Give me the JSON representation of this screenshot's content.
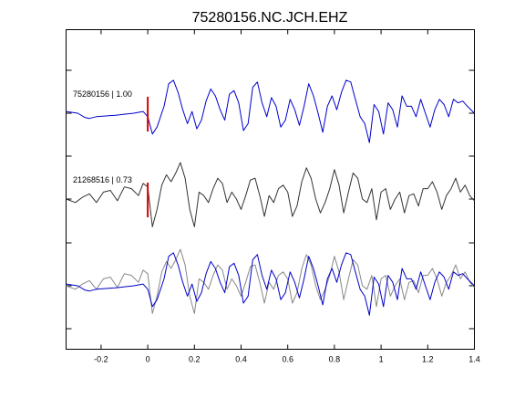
{
  "chart_data": {
    "type": "line",
    "title": "75280156.NC.JCH.EHZ",
    "xlabel": "",
    "ylabel": "",
    "xlim": [
      -0.35,
      1.4
    ],
    "x_ticks": [
      "-0.2",
      "0",
      "0.2",
      "0.4",
      "0.6",
      "0.8",
      "1",
      "1.2",
      "1.4"
    ],
    "x_tick_values": [
      -0.2,
      0,
      0.2,
      0.4,
      0.6,
      0.8,
      1.0,
      1.2,
      1.4
    ],
    "grid": false,
    "pick_time": 0,
    "pick_color": "#dd0000",
    "traces": [
      {
        "label": "75280156 | 1.00",
        "color": "#0000cc",
        "x": [
          -0.35,
          -0.3,
          -0.27,
          -0.25,
          -0.22,
          -0.18,
          -0.14,
          -0.1,
          -0.06,
          -0.02,
          0.0,
          0.02,
          0.04,
          0.07,
          0.09,
          0.11,
          0.13,
          0.15,
          0.17,
          0.19,
          0.21,
          0.23,
          0.25,
          0.27,
          0.29,
          0.31,
          0.33,
          0.35,
          0.37,
          0.39,
          0.41,
          0.43,
          0.45,
          0.47,
          0.49,
          0.51,
          0.53,
          0.55,
          0.57,
          0.59,
          0.61,
          0.63,
          0.65,
          0.67,
          0.69,
          0.71,
          0.73,
          0.75,
          0.77,
          0.79,
          0.81,
          0.83,
          0.85,
          0.87,
          0.89,
          0.91,
          0.93,
          0.95,
          0.97,
          0.99,
          1.01,
          1.03,
          1.05,
          1.07,
          1.09,
          1.11,
          1.13,
          1.15,
          1.17,
          1.19,
          1.21,
          1.23,
          1.25,
          1.27,
          1.29,
          1.31,
          1.33,
          1.35,
          1.37,
          1.4
        ],
        "y": [
          0.05,
          0.0,
          -0.12,
          -0.15,
          -0.1,
          -0.08,
          -0.06,
          -0.03,
          0.0,
          0.05,
          -0.1,
          -0.6,
          -0.4,
          0.2,
          0.85,
          0.95,
          0.6,
          0.1,
          -0.3,
          0.05,
          -0.45,
          -0.2,
          0.35,
          0.7,
          0.5,
          0.1,
          -0.2,
          0.55,
          0.65,
          0.3,
          -0.5,
          -0.3,
          0.75,
          0.9,
          0.3,
          -0.1,
          0.45,
          0.2,
          -0.4,
          -0.2,
          0.4,
          0.1,
          -0.35,
          0.2,
          0.85,
          0.5,
          0.0,
          -0.55,
          0.2,
          0.5,
          0.1,
          0.6,
          0.95,
          0.9,
          0.4,
          -0.1,
          -0.3,
          -0.85,
          0.25,
          0.05,
          -0.6,
          0.3,
          0.1,
          -0.4,
          0.5,
          0.2,
          0.2,
          -0.1,
          0.4,
          0.0,
          -0.4,
          0.1,
          0.4,
          0.25,
          -0.1,
          0.4,
          0.3,
          0.35,
          0.2,
          0.0
        ]
      },
      {
        "label": "21268516 | 0.73",
        "color": "#333333",
        "x": [
          -0.35,
          -0.31,
          -0.28,
          -0.25,
          -0.22,
          -0.19,
          -0.16,
          -0.13,
          -0.1,
          -0.07,
          -0.04,
          -0.02,
          0.0,
          0.02,
          0.04,
          0.06,
          0.08,
          0.1,
          0.12,
          0.14,
          0.16,
          0.18,
          0.2,
          0.22,
          0.24,
          0.26,
          0.28,
          0.3,
          0.32,
          0.34,
          0.36,
          0.38,
          0.4,
          0.42,
          0.44,
          0.46,
          0.48,
          0.5,
          0.52,
          0.54,
          0.56,
          0.58,
          0.6,
          0.62,
          0.64,
          0.66,
          0.68,
          0.7,
          0.72,
          0.74,
          0.76,
          0.78,
          0.8,
          0.82,
          0.84,
          0.86,
          0.88,
          0.9,
          0.92,
          0.94,
          0.96,
          0.98,
          1.0,
          1.02,
          1.04,
          1.06,
          1.08,
          1.1,
          1.12,
          1.14,
          1.16,
          1.18,
          1.2,
          1.22,
          1.24,
          1.26,
          1.28,
          1.3,
          1.32,
          1.34,
          1.36,
          1.38,
          1.4
        ],
        "y": [
          0.0,
          -0.1,
          0.05,
          0.15,
          -0.1,
          0.2,
          0.25,
          -0.05,
          0.35,
          0.3,
          0.1,
          0.45,
          0.35,
          -0.8,
          -0.3,
          0.4,
          0.7,
          0.5,
          0.75,
          1.05,
          0.6,
          -0.3,
          -0.8,
          0.2,
          0.1,
          -0.1,
          0.3,
          0.6,
          0.45,
          -0.1,
          0.2,
          0.0,
          -0.3,
          0.1,
          0.55,
          0.6,
          0.1,
          -0.5,
          0.1,
          -0.1,
          0.3,
          0.4,
          0.2,
          -0.5,
          -0.2,
          0.5,
          0.9,
          0.6,
          0.0,
          -0.4,
          -0.1,
          0.3,
          0.85,
          0.4,
          -0.4,
          0.2,
          0.75,
          0.6,
          0.0,
          -0.1,
          0.3,
          -0.6,
          0.2,
          0.3,
          -0.3,
          0.0,
          0.2,
          -0.4,
          0.1,
          0.15,
          -0.2,
          0.3,
          0.3,
          0.5,
          0.2,
          -0.3,
          0.1,
          0.3,
          0.6,
          0.2,
          0.4,
          0.1,
          -0.05
        ]
      }
    ],
    "overlay": "both traces overlaid in the bottom row"
  }
}
